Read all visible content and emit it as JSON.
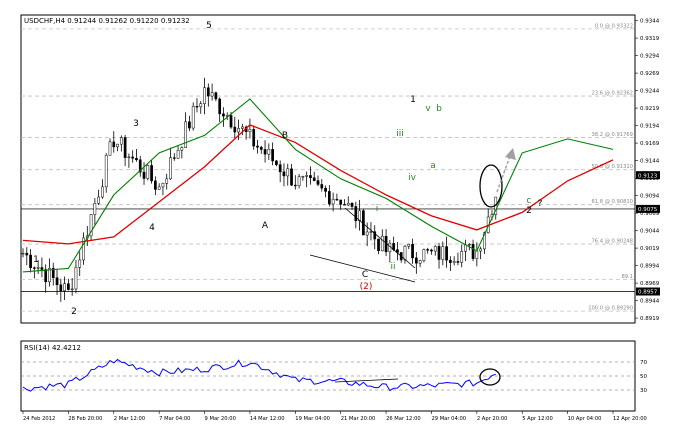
{
  "header": {
    "symbol_line": "USDCHF,H4  0.91244 0.91262 0.91220 0.91232",
    "rsi_label": "RSI(14) 42.4212"
  },
  "colors": {
    "background": "#ffffff",
    "frame": "#000000",
    "candle": "#000000",
    "ma_fast": "#008000",
    "ma_slow": "#e00000",
    "rsi": "#0000ff",
    "fib_lines": "#c0c0c0",
    "price_line": "#303030",
    "support_line": "#1a3a6a",
    "wave_green": "#228b22",
    "wave_red": "#d00000",
    "projection_arrow": "#a0a0a0",
    "price_tag_bg": "#000000",
    "price_tag_text": "#ffffff"
  },
  "main_panel": {
    "price_axis": [
      "0.9344",
      "0.9319",
      "0.9294",
      "0.9269",
      "0.9244",
      "0.9219",
      "0.9194",
      "0.9169",
      "0.9144",
      "0.9119",
      "0.9094",
      "0.9069",
      "0.9044",
      "0.9019",
      "0.8994",
      "0.8969",
      "0.8944",
      "0.8919"
    ],
    "fib_levels": [
      {
        "label": "0.0 @ 0.93322",
        "price": 0.93322
      },
      {
        "label": "23.6 @ 0.92362",
        "price": 0.92362
      },
      {
        "label": "38.2 @ 0.91769",
        "price": 0.91769
      },
      {
        "label": "50.0 @ 0.91310",
        "price": 0.9131
      },
      {
        "label": "61.8 @ 0.90810",
        "price": 0.9081
      },
      {
        "label": "76.4 @ 0.90248",
        "price": 0.90248
      },
      {
        "label": "89.1",
        "price": 0.8974
      },
      {
        "label": "100.0 @ 0.89290",
        "price": 0.8929
      }
    ],
    "price_tags": [
      {
        "text": "0.9123",
        "price": 0.91232
      },
      {
        "text": "0.9075",
        "price": 0.9075
      },
      {
        "text": "0.8957",
        "price": 0.8957
      }
    ],
    "horizontal_lines": [
      0.9075,
      0.8957
    ],
    "wave_labels": [
      {
        "text": "1",
        "kind": "black"
      },
      {
        "text": "2",
        "kind": "black"
      },
      {
        "text": "3",
        "kind": "black"
      },
      {
        "text": "4",
        "kind": "black"
      },
      {
        "text": "5",
        "kind": "black"
      },
      {
        "text": "A",
        "kind": "black"
      },
      {
        "text": "B",
        "kind": "black"
      },
      {
        "text": "C",
        "kind": "black"
      },
      {
        "text": "(2)",
        "kind": "red"
      },
      {
        "text": "i",
        "kind": "green"
      },
      {
        "text": "ii",
        "kind": "green"
      },
      {
        "text": "iii",
        "kind": "green"
      },
      {
        "text": "iv",
        "kind": "green"
      },
      {
        "text": "v",
        "kind": "green"
      },
      {
        "text": "1",
        "kind": "black"
      },
      {
        "text": "a",
        "kind": "green"
      },
      {
        "text": "b",
        "kind": "green"
      },
      {
        "text": "c",
        "kind": "green"
      },
      {
        "text": "2",
        "kind": "black"
      },
      {
        "text": "?",
        "kind": "black"
      }
    ]
  },
  "rsi_panel": {
    "levels": [
      "70",
      "50",
      "30"
    ],
    "axis_labels": [
      "70",
      "50",
      "30"
    ]
  },
  "time_axis": [
    "24 Feb 2012",
    "28 Feb 20:00",
    "2 Mar 12:00",
    "7 Mar 04:00",
    "9 Mar 20:00",
    "14 Mar 12:00",
    "19 Mar 04:00",
    "21 Mar 20:00",
    "26 Mar 12:00",
    "29 Mar 04:00",
    "2 Apr 20:00",
    "5 Apr 12:00",
    "10 Apr 04:00",
    "12 Apr 20:00"
  ],
  "chart_data": {
    "type": "line",
    "instrument": "USDCHF",
    "timeframe": "H4",
    "ohlc_last": {
      "open": 0.91244,
      "high": 0.91262,
      "low": 0.9122,
      "close": 0.91232
    },
    "x": [
      "24 Feb 2012",
      "28 Feb 20:00",
      "2 Mar 12:00",
      "7 Mar 04:00",
      "9 Mar 20:00",
      "14 Mar 12:00",
      "19 Mar 04:00",
      "21 Mar 20:00",
      "26 Mar 12:00",
      "29 Mar 04:00",
      "2 Apr 20:00",
      "5 Apr 12:00",
      "10 Apr 04:00",
      "12 Apr 20:00"
    ],
    "ylim": [
      0.8912,
      0.9352
    ],
    "series": [
      {
        "values": [
          0.9012,
          0.8955,
          0.9175,
          0.9105,
          0.9245,
          0.9175,
          0.9115,
          0.909,
          0.9015,
          0.901,
          0.9015,
          0.921,
          0.917,
          0.911
        ]
      },
      {
        "values": [
          0.8985,
          0.899,
          0.9095,
          0.9155,
          0.918,
          0.9232,
          0.916,
          0.9118,
          0.909,
          0.905,
          0.9015,
          0.9155,
          0.9175,
          0.916
        ]
      },
      {
        "values": [
          0.903,
          0.9025,
          0.9035,
          0.9085,
          0.9135,
          0.9195,
          0.917,
          0.913,
          0.9095,
          0.9065,
          0.9045,
          0.907,
          0.9115,
          0.9145
        ]
      }
    ],
    "rsi": {
      "values": [
        32,
        38,
        72,
        55,
        60,
        70,
        44,
        42,
        34,
        36,
        40,
        76,
        62,
        42
      ],
      "ylim": [
        0,
        100
      ],
      "levels": [
        70,
        50,
        30
      ]
    }
  }
}
